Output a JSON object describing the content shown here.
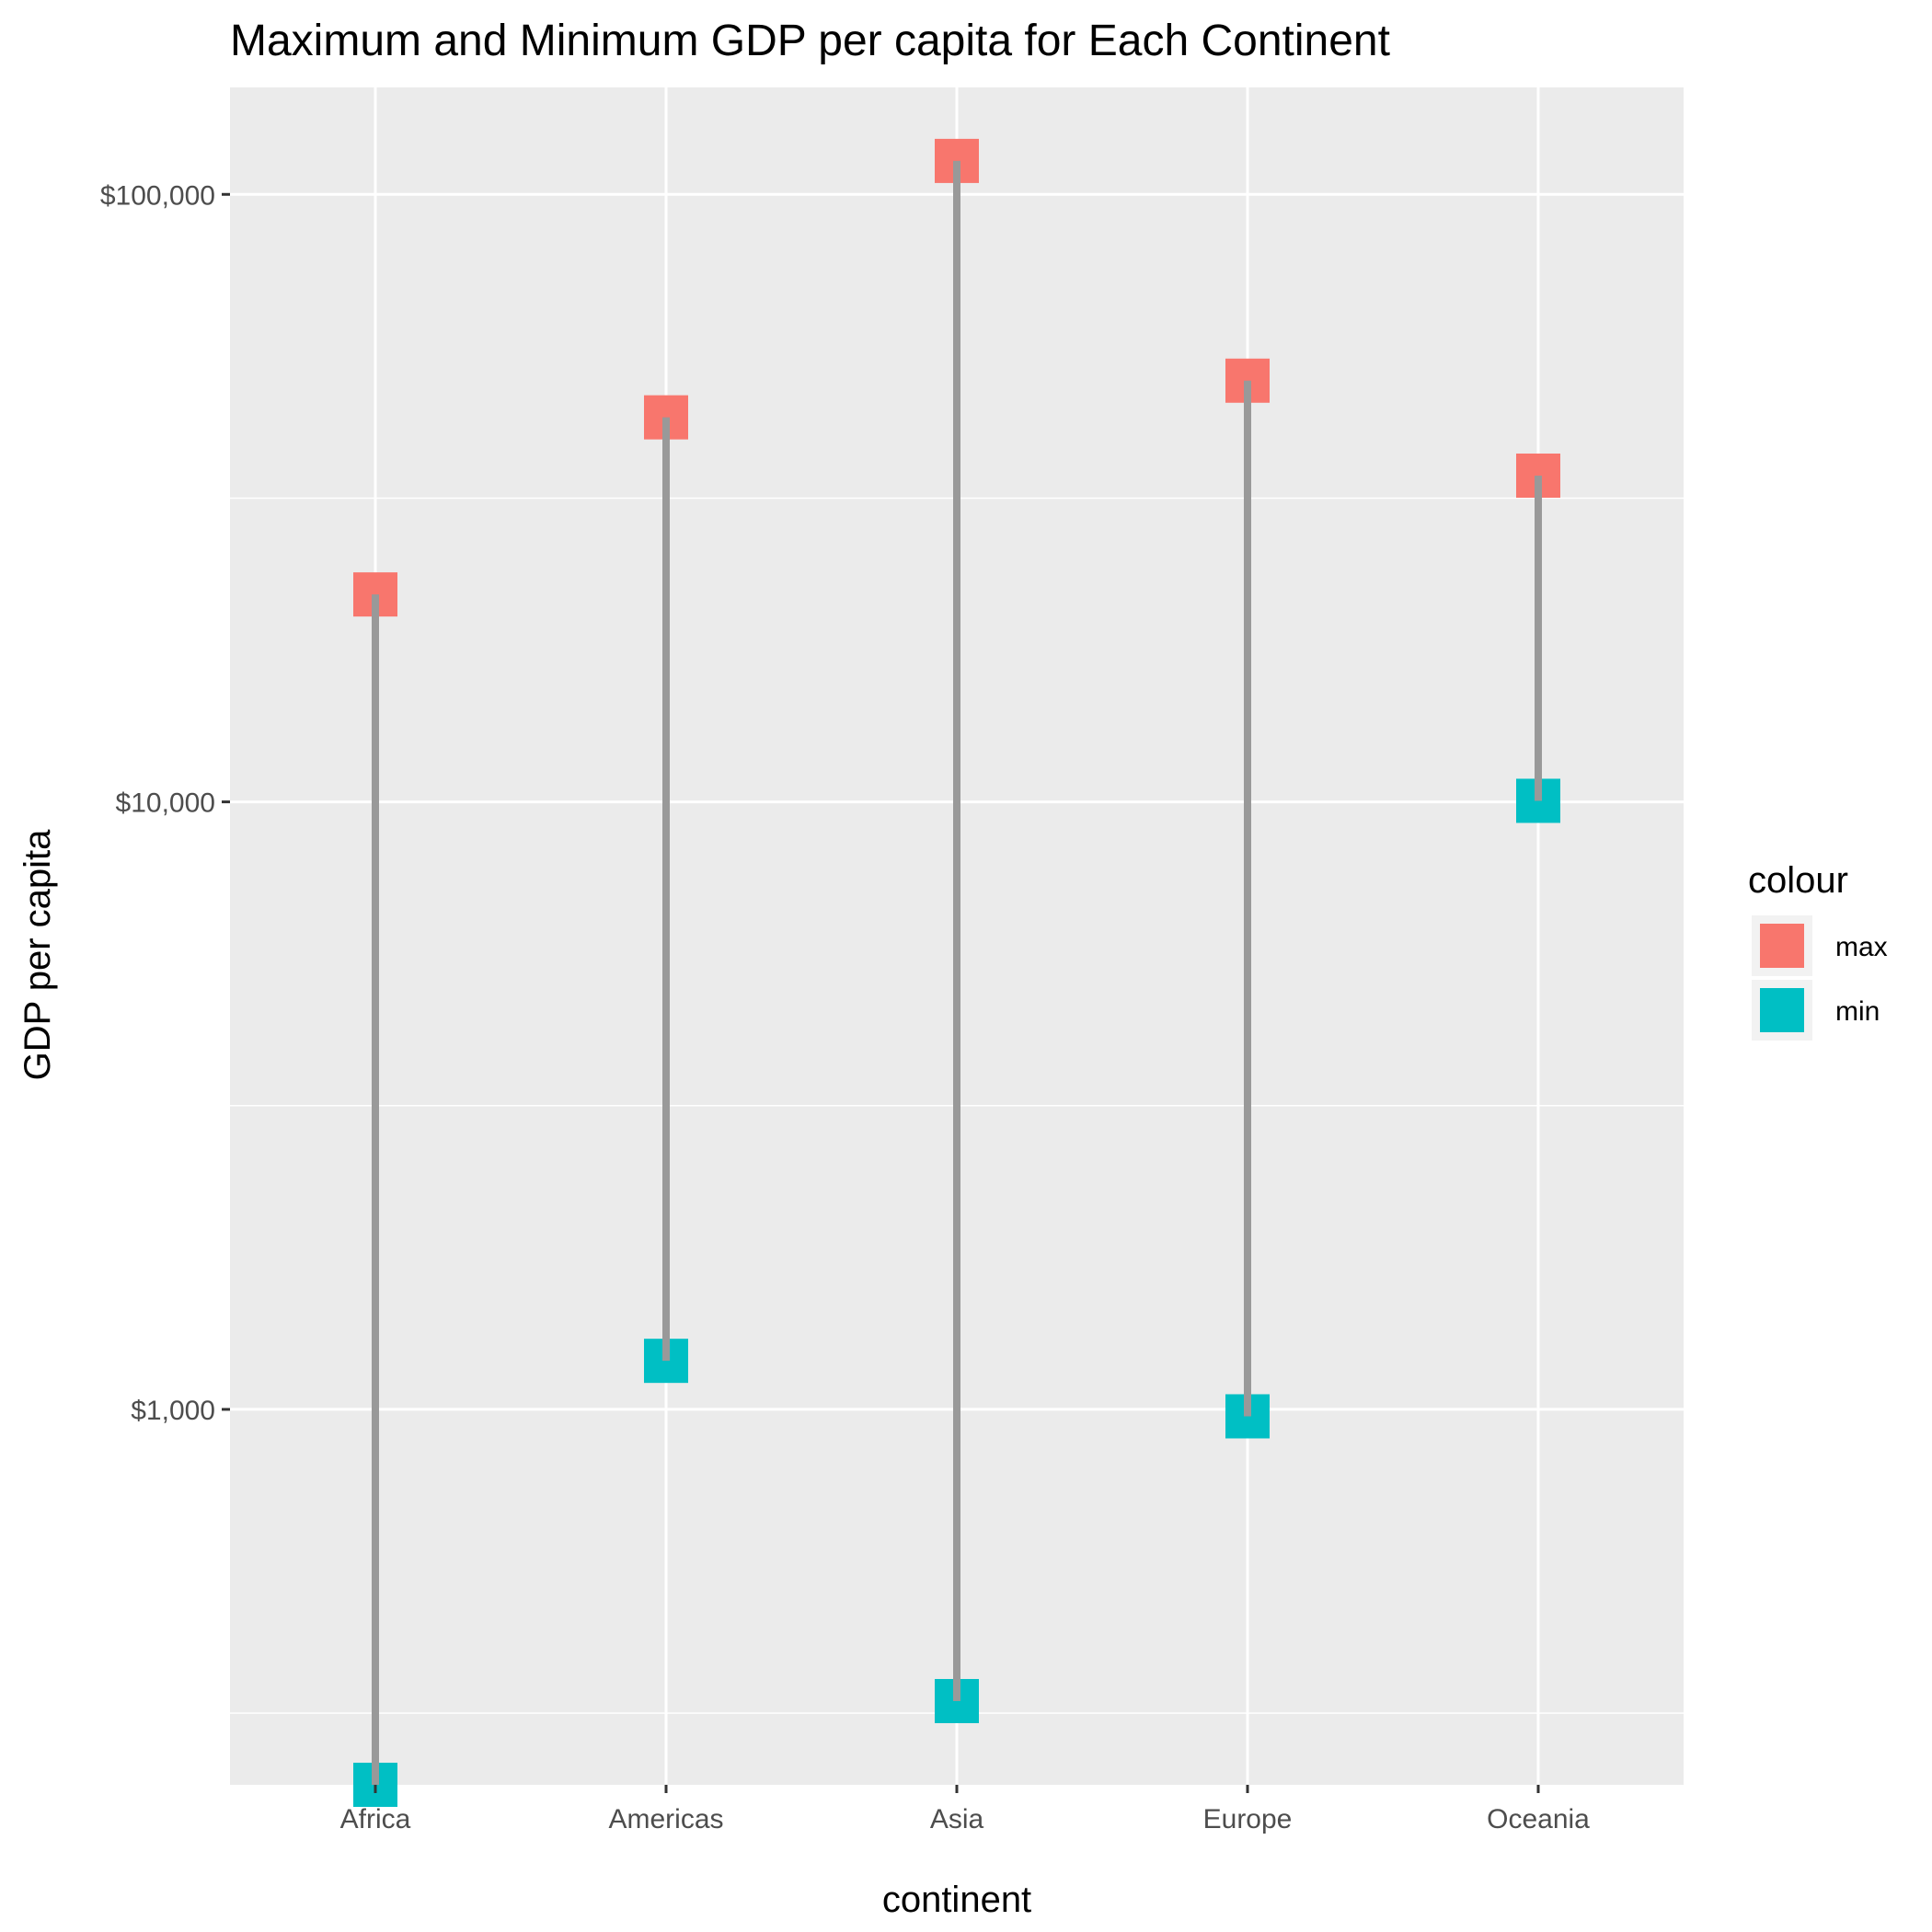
{
  "chart_data": {
    "type": "scatter",
    "title": "Maximum and Minimum GDP per capita for Each Continent",
    "xlabel": "continent",
    "ylabel": "GDP per capita",
    "y_scale": "log10",
    "ylim": [
      241,
      150000
    ],
    "y_ticks": [
      {
        "value": 1000,
        "label": "$1,000"
      },
      {
        "value": 10000,
        "label": "$10,000"
      },
      {
        "value": 100000,
        "label": "$100,000"
      }
    ],
    "y_minor_ticks": [
      316.2,
      3162.3,
      31622.8
    ],
    "categories": [
      "Africa",
      "Americas",
      "Asia",
      "Europe",
      "Oceania"
    ],
    "series": [
      {
        "name": "max",
        "color": "#F8766D",
        "values": [
          21951,
          42952,
          113523,
          49357,
          34435
        ]
      },
      {
        "name": "min",
        "color": "#00BFC4",
        "values": [
          241,
          1202,
          331,
          974,
          10040
        ]
      }
    ],
    "segment_color": "#999999",
    "grid": true,
    "legend": {
      "title": "colour",
      "position": "right",
      "entries": [
        "max",
        "min"
      ]
    }
  }
}
